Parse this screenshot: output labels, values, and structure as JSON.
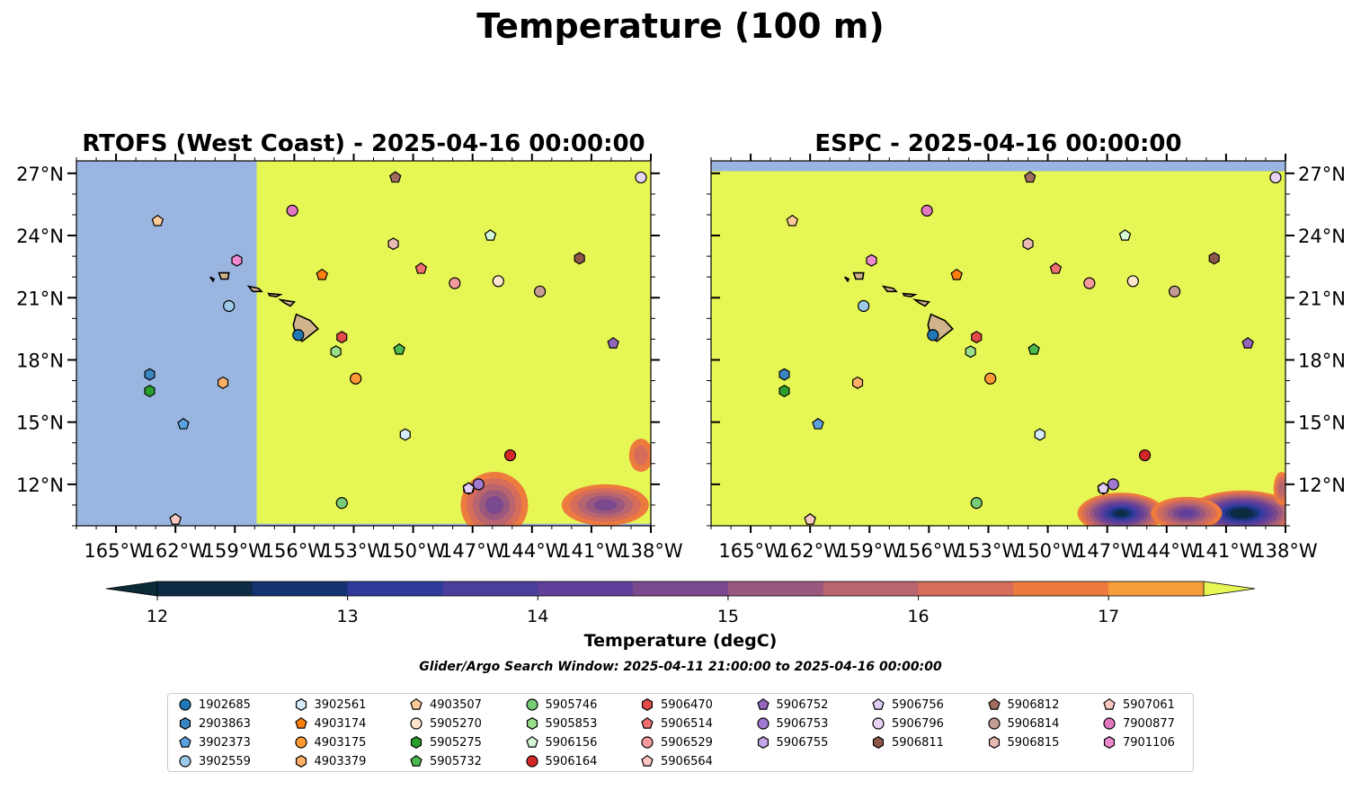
{
  "figure": {
    "suptitle": "Temperature (100 m)",
    "search_window": "Glider/Argo Search Window: 2025-04-11 21:00:00 to 2025-04-16 00:00:00"
  },
  "colorbar": {
    "label": "Temperature (degC)",
    "ticks": [
      12,
      13,
      14,
      15,
      16,
      17
    ],
    "range": [
      11.75,
      17.5
    ],
    "bins": [
      11.75,
      12.0,
      12.5,
      13.0,
      13.5,
      14.0,
      14.5,
      15.0,
      15.5,
      16.0,
      16.5,
      17.0,
      17.5
    ],
    "colors": [
      "#0b2c3d",
      "#0d2b45",
      "#143372",
      "#2f3a9b",
      "#4a3e9c",
      "#623f9a",
      "#7b4a8e",
      "#9a587f",
      "#b8656f",
      "#d66c5a",
      "#ee7b3e",
      "#f79e3c",
      "#f5c53c"
    ],
    "over_color": "#e5f655",
    "under_color": "#0b2a38",
    "extend": "both"
  },
  "colors": {
    "land": "#d2b48c",
    "nodata": "#9ab6e0",
    "warm_water": "#e5f655"
  },
  "chart_data": [
    {
      "type": "heatmap",
      "title": "RTOFS (West Coast) - 2025-04-16 00:00:00",
      "xlim": [
        -167,
        -138
      ],
      "ylim": [
        10,
        27.6
      ],
      "xticks": [
        "165°W",
        "162°W",
        "159°W",
        "156°W",
        "153°W",
        "150°W",
        "147°W",
        "144°W",
        "141°W",
        "138°W"
      ],
      "xtick_values": [
        -165,
        -162,
        -159,
        -156,
        -153,
        -150,
        -147,
        -144,
        -141,
        -138
      ],
      "yticks": [
        "12°N",
        "15°N",
        "18°N",
        "21°N",
        "24°N",
        "27°N"
      ],
      "ytick_values": [
        12,
        15,
        18,
        21,
        24,
        27
      ],
      "ytick_side": "left",
      "data_region": {
        "lon_min": -157.9,
        "lon_max": -138,
        "lat_min": 10.1,
        "lat_max": 27.6
      },
      "background_value": "above 17.5 degC",
      "cool_patches": [
        {
          "lon": -145.9,
          "lat": 11.0,
          "rlon": 1.7,
          "rlat": 1.6,
          "min_temp": 15.0
        },
        {
          "lon": -140.3,
          "lat": 11.0,
          "rlon": 2.2,
          "rlat": 1.0,
          "min_temp": 15.0
        },
        {
          "lon": -138.5,
          "lat": 13.4,
          "rlon": 0.6,
          "rlat": 0.8,
          "min_temp": 16.5
        }
      ],
      "grid": false
    },
    {
      "type": "heatmap",
      "title": "ESPC - 2025-04-16 00:00:00",
      "xlim": [
        -167,
        -138
      ],
      "ylim": [
        10,
        27.6
      ],
      "xticks": [
        "165°W",
        "162°W",
        "159°W",
        "156°W",
        "153°W",
        "150°W",
        "147°W",
        "144°W",
        "141°W",
        "138°W"
      ],
      "xtick_values": [
        -165,
        -162,
        -159,
        -156,
        -153,
        -150,
        -147,
        -144,
        -141,
        -138
      ],
      "yticks": [
        "12°N",
        "15°N",
        "18°N",
        "21°N",
        "24°N",
        "27°N"
      ],
      "ytick_values": [
        12,
        15,
        18,
        21,
        24,
        27
      ],
      "ytick_side": "right",
      "data_region": {
        "lon_min": -167,
        "lon_max": -138,
        "lat_min": 10,
        "lat_max": 27.1
      },
      "background_value": "above 17.5 degC",
      "cool_patches": [
        {
          "lon": -146.3,
          "lat": 10.6,
          "rlon": 2.2,
          "rlat": 1.0,
          "min_temp": 12.5
        },
        {
          "lon": -140.2,
          "lat": 10.6,
          "rlon": 2.8,
          "rlat": 1.1,
          "min_temp": 12.0
        },
        {
          "lon": -143.0,
          "lat": 10.6,
          "rlon": 1.8,
          "rlat": 0.8,
          "min_temp": 14.5
        },
        {
          "lon": -138.2,
          "lat": 11.8,
          "rlon": 0.4,
          "rlat": 0.8,
          "min_temp": 16.0
        }
      ],
      "grid": false
    }
  ],
  "floats": [
    {
      "id": "1902685",
      "marker": "circle",
      "color": "#1f77b4",
      "lon": -155.8,
      "lat": 19.2
    },
    {
      "id": "2903863",
      "marker": "hexagon",
      "color": "#3a86c2",
      "lon": -163.3,
      "lat": 17.3
    },
    {
      "id": "3902373",
      "marker": "pentagon",
      "color": "#5ba3e0",
      "lon": -161.6,
      "lat": 14.9
    },
    {
      "id": "3902559",
      "marker": "circle",
      "color": "#9ecae9",
      "lon": -159.3,
      "lat": 20.6
    },
    {
      "id": "3902561",
      "marker": "hexagon",
      "color": "#d6ecfa",
      "lon": -150.4,
      "lat": 14.4
    },
    {
      "id": "4903174",
      "marker": "pentagon",
      "color": "#ff7f0e",
      "lon": -154.6,
      "lat": 22.1
    },
    {
      "id": "4903175",
      "marker": "circle",
      "color": "#ff9933",
      "lon": -152.9,
      "lat": 17.1
    },
    {
      "id": "4903379",
      "marker": "hexagon",
      "color": "#ffb067",
      "lon": -159.6,
      "lat": 16.9
    },
    {
      "id": "4903507",
      "marker": "pentagon",
      "color": "#ffcc99",
      "lon": -162.9,
      "lat": 24.7
    },
    {
      "id": "5905270",
      "marker": "circle",
      "color": "#ffe5cc",
      "lon": -145.7,
      "lat": 21.8
    },
    {
      "id": "5905275",
      "marker": "hexagon",
      "color": "#2ca02c",
      "lon": -163.3,
      "lat": 16.5
    },
    {
      "id": "5905732",
      "marker": "pentagon",
      "color": "#4cb94c",
      "lon": -150.7,
      "lat": 18.5
    },
    {
      "id": "5905746",
      "marker": "circle",
      "color": "#77cc77",
      "lon": -153.6,
      "lat": 11.1
    },
    {
      "id": "5905853",
      "marker": "hexagon",
      "color": "#98df8a",
      "lon": -153.9,
      "lat": 18.4
    },
    {
      "id": "5906156",
      "marker": "pentagon",
      "color": "#d4f7d4",
      "lon": -146.1,
      "lat": 24.0
    },
    {
      "id": "5906164",
      "marker": "circle",
      "color": "#d62728",
      "lon": -145.1,
      "lat": 13.4
    },
    {
      "id": "5906470",
      "marker": "hexagon",
      "color": "#e34a4a",
      "lon": -153.6,
      "lat": 19.1
    },
    {
      "id": "5906514",
      "marker": "pentagon",
      "color": "#f07070",
      "lon": -149.6,
      "lat": 22.4
    },
    {
      "id": "5906529",
      "marker": "circle",
      "color": "#f49a9a",
      "lon": -147.9,
      "lat": 21.7
    },
    {
      "id": "5906564",
      "marker": "pentagon",
      "color": "#ffc4c4",
      "lon": -162.0,
      "lat": 10.3
    },
    {
      "id": "5906752",
      "marker": "pentagon",
      "color": "#9467bd",
      "lon": -139.9,
      "lat": 18.8
    },
    {
      "id": "5906753",
      "marker": "circle",
      "color": "#a17ad0",
      "lon": -146.7,
      "lat": 12.0
    },
    {
      "id": "5906755",
      "marker": "hexagon",
      "color": "#c4a5e8",
      "lon": -147.2,
      "lat": 11.8
    },
    {
      "id": "5906756",
      "marker": "pentagon",
      "color": "#e0cef8",
      "lon": -147.2,
      "lat": 11.8
    },
    {
      "id": "5906796",
      "marker": "circle",
      "color": "#e8d3f5",
      "lon": -138.5,
      "lat": 26.8
    },
    {
      "id": "5906811",
      "marker": "hexagon",
      "color": "#8c564b",
      "lon": -141.6,
      "lat": 22.9
    },
    {
      "id": "5906812",
      "marker": "pentagon",
      "color": "#a06d5f",
      "lon": -150.9,
      "lat": 26.8
    },
    {
      "id": "5906814",
      "marker": "circle",
      "color": "#c49c94",
      "lon": -143.6,
      "lat": 21.3
    },
    {
      "id": "5906815",
      "marker": "hexagon",
      "color": "#e8b9b0",
      "lon": -151.0,
      "lat": 23.6
    },
    {
      "id": "5907061",
      "marker": "pentagon",
      "color": "#f7c9c0",
      "lon": -162.0,
      "lat": 10.3
    },
    {
      "id": "7900877",
      "marker": "circle",
      "color": "#e377c2",
      "lon": -156.1,
      "lat": 25.2
    },
    {
      "id": "7901106",
      "marker": "hexagon",
      "color": "#f08ad0",
      "lon": -158.9,
      "lat": 22.8
    }
  ],
  "legend_order": [
    "1902685",
    "2903863",
    "3902373",
    "3902559",
    "3902561",
    "4903174",
    "4903175",
    "4903379",
    "4903507",
    "5905270",
    "5905275",
    "5905732",
    "5905746",
    "5905853",
    "5906156",
    "5906164",
    "5906470",
    "5906514",
    "5906529",
    "5906564",
    "5906752",
    "5906753",
    "5906755",
    "5906756",
    "5906796",
    "5906811",
    "5906812",
    "5906814",
    "5906815",
    "5907061",
    "7900877",
    "7901106"
  ],
  "islands": [
    {
      "name": "Hawaii",
      "pts": [
        [
          -155.9,
          20.2
        ],
        [
          -155.2,
          19.9
        ],
        [
          -154.8,
          19.5
        ],
        [
          -155.6,
          18.9
        ],
        [
          -155.9,
          19.1
        ],
        [
          -156.05,
          19.7
        ]
      ]
    },
    {
      "name": "Maui",
      "pts": [
        [
          -156.7,
          20.9
        ],
        [
          -156.0,
          20.8
        ],
        [
          -156.2,
          20.6
        ],
        [
          -156.5,
          20.75
        ]
      ]
    },
    {
      "name": "Molokai",
      "pts": [
        [
          -157.3,
          21.2
        ],
        [
          -156.7,
          21.15
        ],
        [
          -156.9,
          21.05
        ],
        [
          -157.25,
          21.1
        ]
      ]
    },
    {
      "name": "Oahu",
      "pts": [
        [
          -158.3,
          21.55
        ],
        [
          -157.8,
          21.45
        ],
        [
          -157.65,
          21.3
        ],
        [
          -158.1,
          21.3
        ]
      ]
    },
    {
      "name": "Kauai",
      "pts": [
        [
          -159.8,
          22.2
        ],
        [
          -159.3,
          22.2
        ],
        [
          -159.35,
          21.9
        ],
        [
          -159.7,
          21.9
        ]
      ]
    },
    {
      "name": "Niihau",
      "pts": [
        [
          -160.25,
          22.0
        ],
        [
          -160.05,
          21.9
        ],
        [
          -160.1,
          21.8
        ]
      ]
    }
  ]
}
